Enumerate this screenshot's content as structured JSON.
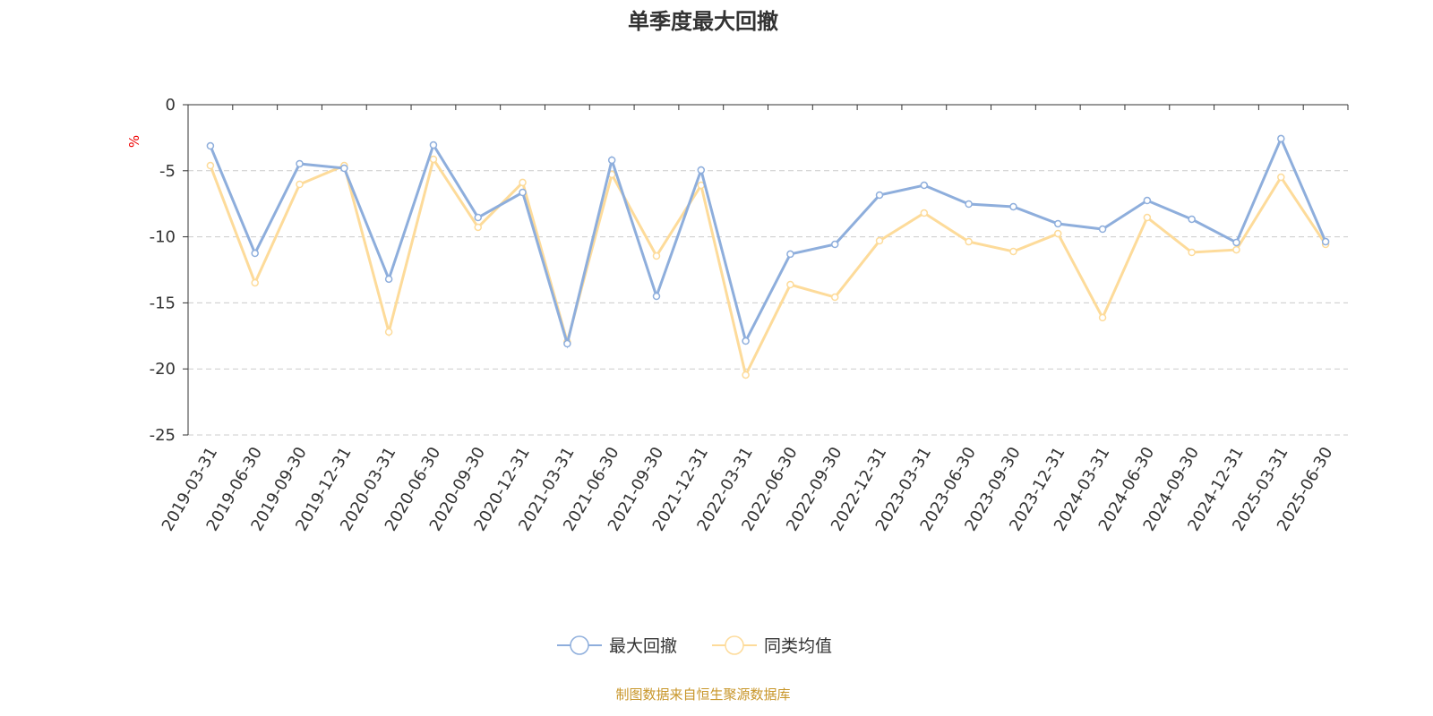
{
  "chart_data": {
    "type": "line",
    "title": "单季度最大回撤",
    "ylabel": "%",
    "xlabel": "",
    "ylim": [
      -25,
      0
    ],
    "yticks": [
      0,
      -5,
      -10,
      -15,
      -20,
      -25
    ],
    "grid": true,
    "legend_position": "bottom-center",
    "categories": [
      "2019-03-31",
      "2019-06-30",
      "2019-09-30",
      "2019-12-31",
      "2020-03-31",
      "2020-06-30",
      "2020-09-30",
      "2020-12-31",
      "2021-03-31",
      "2021-06-30",
      "2021-09-30",
      "2021-12-31",
      "2022-03-31",
      "2022-06-30",
      "2022-09-30",
      "2022-12-31",
      "2023-03-31",
      "2023-06-30",
      "2023-09-30",
      "2023-12-31",
      "2024-03-31",
      "2024-06-30",
      "2024-09-30",
      "2024-12-31",
      "2025-03-31",
      "2025-06-30"
    ],
    "series": [
      {
        "name": "最大回撤",
        "color": "#8eaedc",
        "values": [
          -3.12,
          -11.25,
          -4.47,
          -4.81,
          -13.2,
          -3.05,
          -8.54,
          -6.64,
          -18.09,
          -4.2,
          -14.5,
          -4.95,
          -17.89,
          -11.31,
          -10.57,
          -6.84,
          -6.1,
          -7.52,
          -7.72,
          -9.01,
          -9.42,
          -7.25,
          -8.67,
          -10.43,
          -2.57,
          -10.37
        ]
      },
      {
        "name": "同类均值",
        "color": "#fddb9a",
        "values": [
          -4.61,
          -13.48,
          -6.03,
          -4.61,
          -17.2,
          -4.13,
          -9.28,
          -5.89,
          -17.95,
          -5.28,
          -11.45,
          -6.1,
          -20.46,
          -13.62,
          -14.57,
          -10.3,
          -8.2,
          -10.37,
          -11.11,
          -9.76,
          -16.12,
          -8.54,
          -11.18,
          -10.98,
          -5.49,
          -10.57
        ]
      }
    ]
  },
  "footer": {
    "source": "制图数据来自恒生聚源数据库"
  }
}
